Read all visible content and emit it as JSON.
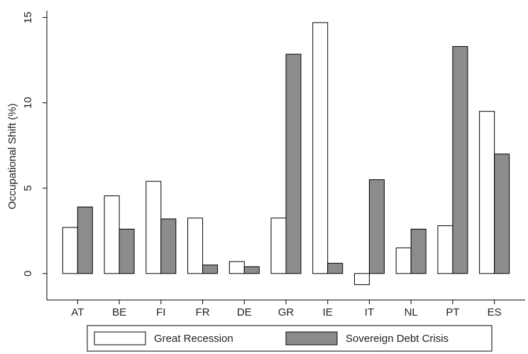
{
  "chart_data": {
    "type": "bar",
    "ylabel": "Occupational Shift (%)",
    "categories": [
      "AT",
      "BE",
      "FI",
      "FR",
      "DE",
      "GR",
      "IE",
      "IT",
      "NL",
      "PT",
      "ES"
    ],
    "series": [
      {
        "name": "Great Recession",
        "color": "#ffffff",
        "values": [
          2.7,
          4.55,
          5.4,
          3.25,
          0.7,
          3.25,
          14.7,
          -0.65,
          1.5,
          2.8,
          9.5
        ]
      },
      {
        "name": "Sovereign Debt Crisis",
        "color": "#8c8c8c",
        "values": [
          3.9,
          2.6,
          3.2,
          0.5,
          0.4,
          12.85,
          0.6,
          5.5,
          2.6,
          13.3,
          7.0
        ]
      }
    ],
    "ylim": [
      -1.55,
      15.4
    ],
    "yticks": [
      0,
      5,
      10,
      15
    ],
    "grid": false,
    "legend": "bottom"
  }
}
